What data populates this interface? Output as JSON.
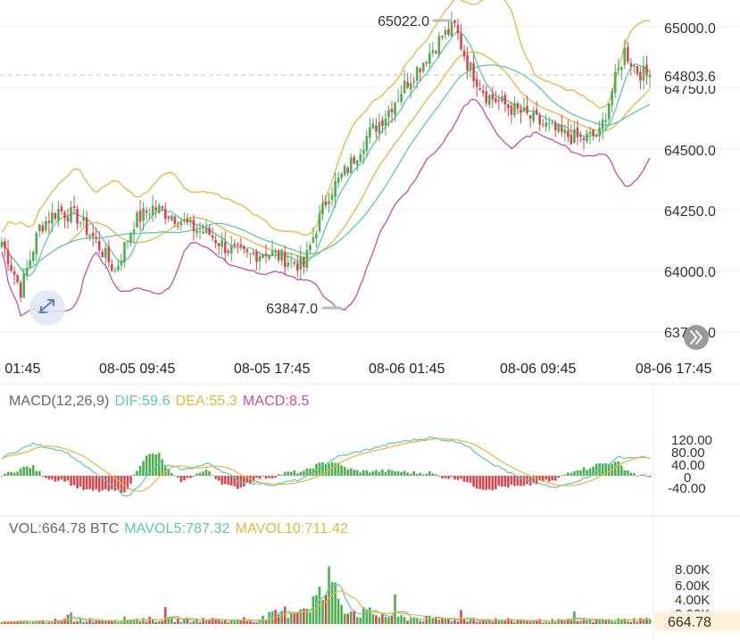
{
  "colors": {
    "up": "#4caf50",
    "down": "#d8474e",
    "ma_teal": "#5cc8b0",
    "ma_gold": "#e7b63a",
    "boll_lower": "#c44dab",
    "grid": "#efefef",
    "last_price": "#4caf50",
    "vol_badge_bg": "#fdf1d8",
    "vol_badge_text": "#d99a1e",
    "label_gray": "#666666",
    "marker_line": "#bbbbbb"
  },
  "icons": {
    "drawing_tool": "swap-arrows-icon",
    "scroll_right": "double-chevron-right-icon"
  },
  "chart_data": {
    "type": "candlestick",
    "price_axis": {
      "ticks": [
        "65000.0",
        "64750.0",
        "64500.0",
        "64250.0",
        "64000.0",
        "63750.0"
      ],
      "range": [
        63650,
        65100
      ]
    },
    "last_price": "64803.6",
    "high_marker": "65022.0",
    "low_marker": "63847.0",
    "time_labels": [
      "08-05 01:45",
      "08-05 09:45",
      "08-05 17:45",
      "08-06 01:45",
      "08-06 09:45",
      "08-06 17:45"
    ],
    "macd": {
      "params": "MACD(12,26,9)",
      "dif_label": "DIF:59.6",
      "dea_label": "DEA:55.3",
      "macd_label": "MACD:8.5",
      "axis_ticks": [
        "120.00",
        "80.00",
        "40.00",
        "0",
        "-40.00"
      ]
    },
    "volume": {
      "vol_label": "VOL:664.78 BTC",
      "mavol5_label": "MAVOL5:787.32",
      "mavol10_label": "MAVOL10:711.42",
      "axis_ticks": [
        "8.00K",
        "6.00K",
        "4.00K",
        "2.00K"
      ],
      "current": "664.78"
    },
    "close_trend": [
      [
        0,
        64120
      ],
      [
        6,
        63920
      ],
      [
        12,
        64180
      ],
      [
        18,
        64250
      ],
      [
        24,
        64220
      ],
      [
        30,
        64120
      ],
      [
        36,
        64000
      ],
      [
        42,
        64200
      ],
      [
        48,
        64260
      ],
      [
        54,
        64230
      ],
      [
        60,
        64180
      ],
      [
        66,
        64150
      ],
      [
        72,
        64090
      ],
      [
        78,
        64060
      ],
      [
        84,
        64080
      ],
      [
        90,
        64050
      ],
      [
        96,
        64020
      ],
      [
        100,
        64180
      ],
      [
        104,
        64320
      ],
      [
        110,
        64420
      ],
      [
        116,
        64550
      ],
      [
        122,
        64640
      ],
      [
        128,
        64760
      ],
      [
        134,
        64860
      ],
      [
        140,
        64960
      ],
      [
        144,
        65000
      ],
      [
        148,
        64850
      ],
      [
        154,
        64720
      ],
      [
        160,
        64680
      ],
      [
        166,
        64640
      ],
      [
        172,
        64600
      ],
      [
        178,
        64560
      ],
      [
        184,
        64540
      ],
      [
        190,
        64560
      ],
      [
        194,
        64740
      ],
      [
        198,
        64900
      ],
      [
        202,
        64820
      ],
      [
        206,
        64790
      ]
    ],
    "macd_dif_trend": [
      [
        0,
        60
      ],
      [
        10,
        105
      ],
      [
        20,
        80
      ],
      [
        30,
        5
      ],
      [
        40,
        -70
      ],
      [
        50,
        40
      ],
      [
        58,
        20
      ],
      [
        66,
        40
      ],
      [
        76,
        -20
      ],
      [
        86,
        -30
      ],
      [
        96,
        -10
      ],
      [
        106,
        60
      ],
      [
        116,
        85
      ],
      [
        126,
        110
      ],
      [
        136,
        125
      ],
      [
        146,
        110
      ],
      [
        156,
        40
      ],
      [
        166,
        -15
      ],
      [
        176,
        -40
      ],
      [
        186,
        -5
      ],
      [
        196,
        60
      ],
      [
        206,
        59.6
      ]
    ],
    "vol_trend": [
      [
        0,
        250
      ],
      [
        20,
        500
      ],
      [
        40,
        700
      ],
      [
        60,
        600
      ],
      [
        80,
        450
      ],
      [
        96,
        2500
      ],
      [
        104,
        4800
      ],
      [
        112,
        1800
      ],
      [
        130,
        800
      ],
      [
        150,
        600
      ],
      [
        170,
        450
      ],
      [
        190,
        500
      ],
      [
        206,
        664.78
      ]
    ]
  }
}
